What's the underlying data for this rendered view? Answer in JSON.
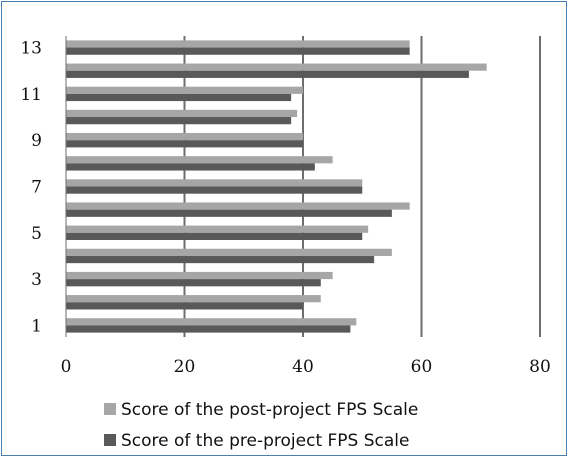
{
  "chart_data": {
    "type": "bar",
    "orientation": "horizontal",
    "categories": [
      "1",
      "2",
      "3",
      "4",
      "5",
      "6",
      "7",
      "8",
      "9",
      "10",
      "11",
      "12",
      "13"
    ],
    "y_tick_labels": [
      "1",
      "3",
      "5",
      "7",
      "9",
      "11",
      "13"
    ],
    "x_tick_labels": [
      "0",
      "20",
      "40",
      "60",
      "80"
    ],
    "xlim": [
      0,
      80
    ],
    "series": [
      {
        "name": "Score of the post-project FPS Scale",
        "color": "#a6a6a6",
        "values": [
          49,
          43,
          45,
          55,
          51,
          58,
          50,
          45,
          40,
          39,
          40,
          71,
          58
        ]
      },
      {
        "name": "Score of the pre-project FPS Scale",
        "color": "#595959",
        "values": [
          48,
          40,
          43,
          52,
          50,
          55,
          50,
          42,
          40,
          38,
          38,
          68,
          58
        ]
      }
    ],
    "grid": true,
    "legend_position": "bottom"
  }
}
